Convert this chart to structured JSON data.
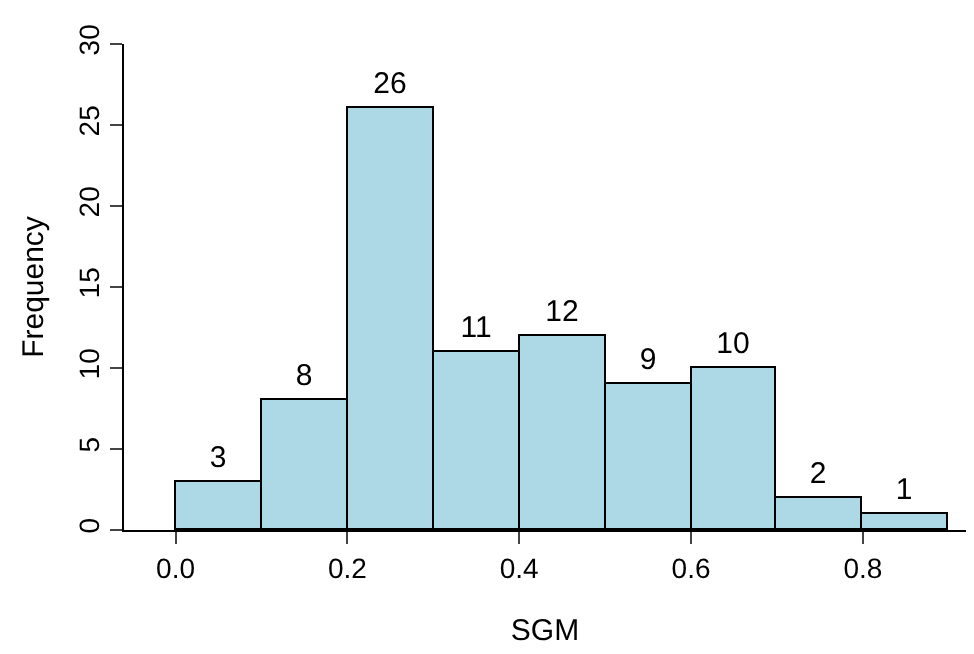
{
  "chart_data": {
    "type": "histogram",
    "xlabel": "SGM",
    "ylabel": "Frequency",
    "bins": [
      0.0,
      0.1,
      0.2,
      0.3,
      0.4,
      0.5,
      0.6,
      0.7,
      0.8,
      0.9
    ],
    "values": [
      3,
      8,
      26,
      11,
      12,
      9,
      10,
      2,
      1
    ],
    "color": "#add8e6",
    "xlim": [
      -0.06,
      0.92
    ],
    "xticks": [
      {
        "value": 0.0,
        "label": "0.0"
      },
      {
        "value": 0.2,
        "label": "0.2"
      },
      {
        "value": 0.4,
        "label": "0.4"
      },
      {
        "value": 0.6,
        "label": "0.6"
      },
      {
        "value": 0.8,
        "label": "0.8"
      }
    ],
    "ylim": [
      0,
      30
    ],
    "yticks": [
      0,
      5,
      10,
      15,
      20,
      25,
      30
    ],
    "data_labels": true
  }
}
